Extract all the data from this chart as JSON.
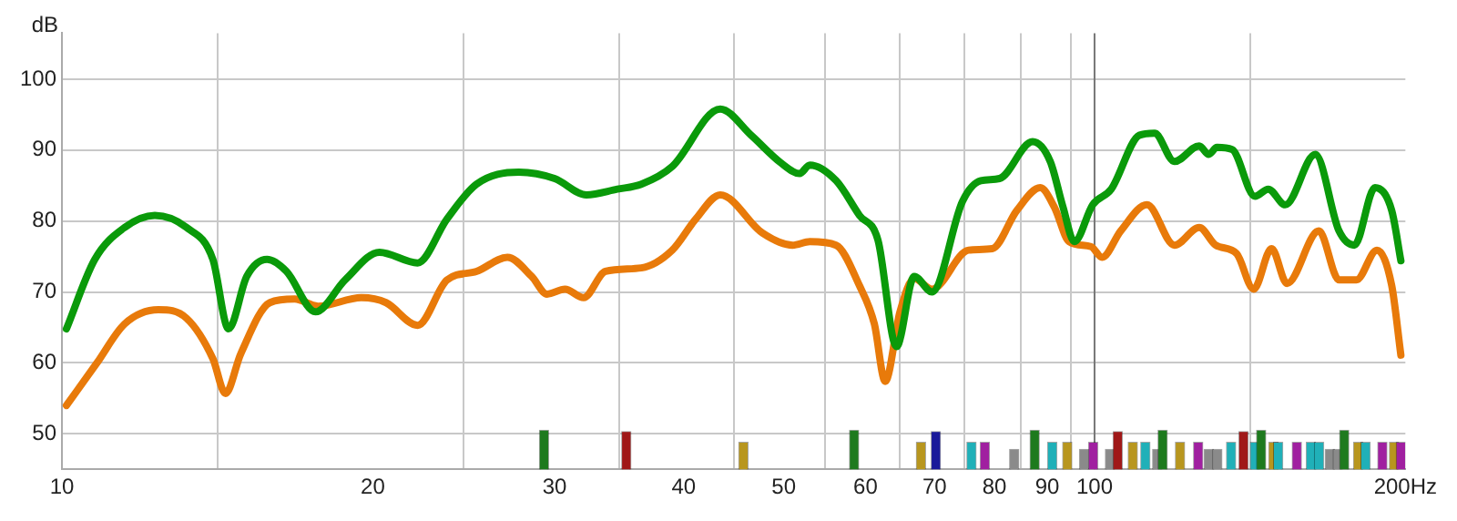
{
  "chart_data": {
    "type": "line",
    "ylabel": "dB",
    "log": "x",
    "grid": true,
    "legend": false,
    "marker": "none",
    "line_style": "solid",
    "xlim": [
      10,
      200
    ],
    "ylim": [
      45,
      106.5
    ],
    "xticks": [
      10,
      20,
      30,
      40,
      50,
      60,
      70,
      80,
      90,
      100,
      {
        "value": 200,
        "label": "200Hz"
      }
    ],
    "yticks": [
      50,
      60,
      70,
      80,
      90,
      100
    ],
    "ref_lines": [
      {
        "axis": "x",
        "value": 100,
        "color": "#777777"
      }
    ],
    "series": [
      {
        "type": "bar",
        "x": [
          29.3,
          35.2,
          45.7,
          58.5,
          67.9,
          70.2,
          76.0,
          78.3,
          83.6,
          87.5,
          91.0,
          94.1,
          97.7,
          99.7,
          103.5,
          105.3,
          108.9,
          112,
          115,
          116.4,
          121,
          126,
          129,
          131.5,
          135.6,
          139.4,
          143,
          145,
          149,
          150.6,
          157,
          162,
          165,
          169,
          172,
          174.5,
          180,
          183,
          190,
          195,
          198
        ],
        "values": [
          50.5,
          50.3,
          48.8,
          50.5,
          48.8,
          50.3,
          48.8,
          48.8,
          47.8,
          50.5,
          48.8,
          48.8,
          47.8,
          48.8,
          47.8,
          50.3,
          48.8,
          48.8,
          47.8,
          50.5,
          48.8,
          48.8,
          47.8,
          47.8,
          48.8,
          50.3,
          48.8,
          50.5,
          48.8,
          48.8,
          48.8,
          48.8,
          48.8,
          47.8,
          47.8,
          50.5,
          48.8,
          48.8,
          48.8,
          48.8,
          48.8
        ],
        "colors": [
          "#1e7a1e",
          "#a01818",
          "#b8961e",
          "#1e7a1e",
          "#b8961e",
          "#1a1a9a",
          "#20b0b8",
          "#a020a0",
          "#8a8a8a",
          "#1e7a1e",
          "#20b0b8",
          "#b8961e",
          "#8a8a8a",
          "#a020a0",
          "#8a8a8a",
          "#a01818",
          "#b8961e",
          "#20b0b8",
          "#8a8a8a",
          "#1e7a1e",
          "#b8961e",
          "#a020a0",
          "#8a8a8a",
          "#8a8a8a",
          "#20b0b8",
          "#a01818",
          "#20b0b8",
          "#1e7a1e",
          "#b8961e",
          "#20b0b8",
          "#a020a0",
          "#20b0b8",
          "#20b0b8",
          "#8a8a8a",
          "#8a8a8a",
          "#1e7a1e",
          "#b8961e",
          "#20b0b8",
          "#a020a0",
          "#b8961e",
          "#a020a0"
        ]
      },
      {
        "color": "#0a9a0a",
        "x": [
          10.1,
          10.76,
          11.5,
          12.3,
          13.2,
          14.0,
          14.5,
          15.1,
          15.8,
          16.5,
          17.6,
          18.8,
          20.3,
          22.1,
          23.6,
          25.2,
          27.7,
          30.0,
          32.2,
          34.5,
          36.4,
          39.0,
          43.4,
          46.5,
          49.7,
          51.8,
          53.0,
          56.2,
          59.2,
          61.7,
          64.3,
          66.9,
          69.6,
          74.5,
          77.6,
          80.9,
          87.1,
          90.6,
          93.2,
          95.6,
          99.6,
          103.8,
          110.5,
          114.3,
          119.5,
          126.3,
          129.0,
          131.4,
          135.9,
          143.0,
          147.3,
          153.0,
          163.6,
          172.5,
          178.5,
          186.9,
          194.0,
          198.0
        ],
        "values": [
          64.8,
          74.6,
          79.1,
          80.8,
          79.1,
          74.6,
          64.8,
          72.2,
          74.6,
          72.9,
          67.2,
          71.7,
          75.6,
          74.1,
          80.3,
          85.2,
          86.9,
          86.0,
          83.7,
          84.5,
          85.2,
          87.7,
          95.8,
          92.1,
          88.2,
          86.7,
          87.9,
          85.7,
          80.8,
          77.3,
          62.3,
          72.2,
          70.0,
          82.8,
          85.7,
          86.0,
          91.2,
          88.4,
          82.0,
          77.1,
          82.3,
          84.5,
          92.1,
          92.4,
          88.4,
          90.6,
          89.4,
          90.4,
          90.1,
          83.5,
          84.5,
          82.3,
          89.4,
          78.6,
          76.6,
          84.7,
          81.5,
          74.4
        ]
      },
      {
        "color": "#e87a0a",
        "x": [
          10.1,
          10.8,
          11.5,
          12.4,
          13.2,
          14.0,
          14.4,
          14.9,
          15.9,
          16.8,
          17.7,
          19.5,
          20.6,
          22.1,
          23.6,
          25.2,
          27.0,
          28.5,
          29.5,
          30.7,
          32.0,
          33.6,
          36.4,
          39.0,
          41.1,
          43.4,
          47.7,
          51.0,
          53.0,
          56.2,
          59.2,
          61.2,
          62.7,
          64.8,
          66.9,
          69.6,
          75.5,
          79.6,
          84.1,
          88.6,
          91.4,
          94.5,
          99.2,
          101.7,
          106.0,
          112.4,
          119.5,
          126.3,
          131.0,
          137.3,
          142.6,
          148.4,
          153.6,
          164.9,
          172.5,
          179.3,
          187.7,
          194.0,
          198.0
        ],
        "values": [
          54.0,
          59.9,
          65.5,
          67.5,
          66.3,
          60.6,
          55.7,
          61.3,
          68.5,
          69.0,
          68.0,
          69.2,
          68.5,
          65.3,
          71.7,
          72.9,
          74.9,
          72.2,
          69.7,
          70.4,
          69.2,
          72.9,
          73.4,
          75.9,
          80.3,
          83.7,
          78.3,
          76.6,
          77.1,
          76.6,
          70.9,
          65.5,
          57.4,
          67.2,
          71.9,
          70.4,
          75.9,
          76.1,
          81.5,
          84.7,
          82.0,
          77.1,
          76.4,
          74.9,
          78.6,
          82.3,
          76.6,
          79.1,
          76.6,
          75.4,
          70.4,
          76.1,
          71.2,
          78.6,
          71.7,
          71.7,
          75.9,
          70.9,
          61.1
        ]
      }
    ]
  }
}
